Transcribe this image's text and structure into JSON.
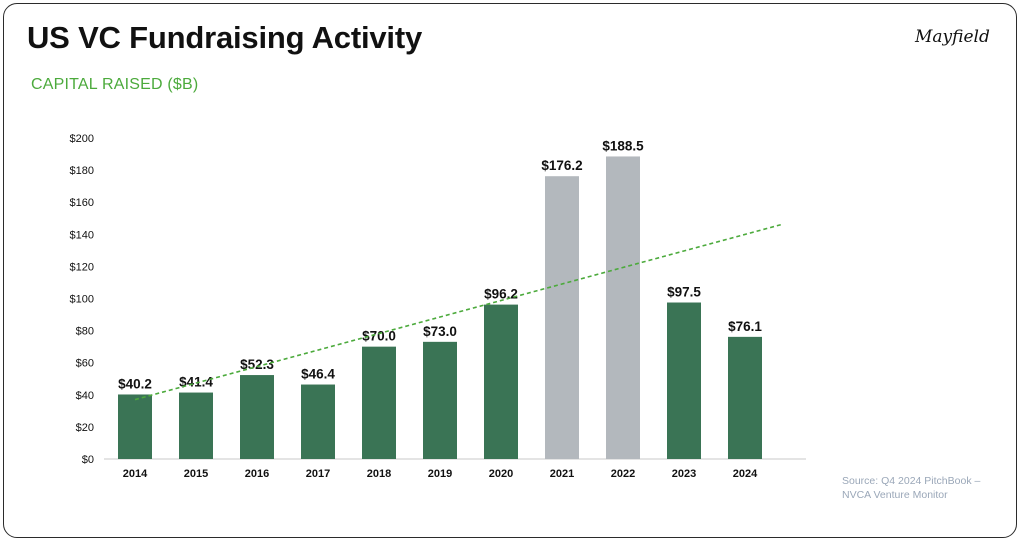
{
  "header": {
    "title": "US VC Fundraising Activity",
    "subtitle": "CAPITAL RAISED ($B)",
    "logo": "Mayfield"
  },
  "footer": {
    "source_line1": "Source: Q4 2024 PitchBook –",
    "source_line2": "NVCA Venture Monitor"
  },
  "colors": {
    "bar_green": "#3a7455",
    "bar_grey": "#b3b8bd",
    "trend": "#4caa3c"
  },
  "chart_data": {
    "type": "bar",
    "title": "US VC Fundraising Activity",
    "ylabel": "CAPITAL RAISED ($B)",
    "categories": [
      "2014",
      "2015",
      "2016",
      "2017",
      "2018",
      "2019",
      "2020",
      "2021",
      "2022",
      "2023",
      "2024"
    ],
    "values": [
      40.2,
      41.4,
      52.3,
      46.4,
      70.0,
      73.0,
      96.2,
      176.2,
      188.5,
      97.5,
      76.1
    ],
    "value_labels": [
      "$40.2",
      "$41.4",
      "$52.3",
      "$46.4",
      "$70.0",
      "$73.0",
      "$96.2",
      "$176.2",
      "$188.5",
      "$97.5",
      "$76.1"
    ],
    "highlight": [
      "green",
      "green",
      "green",
      "green",
      "green",
      "green",
      "green",
      "grey",
      "grey",
      "green",
      "green"
    ],
    "ylim": [
      0,
      200
    ],
    "yticks": [
      0,
      20,
      40,
      60,
      80,
      100,
      120,
      140,
      160,
      180,
      200
    ],
    "ytick_labels": [
      "$0",
      "$20",
      "$40",
      "$60",
      "$80",
      "$100",
      "$120",
      "$140",
      "$160",
      "$180",
      "$200"
    ],
    "trendline": {
      "style": "dashed",
      "start": {
        "x": "2014",
        "y": 37
      },
      "end": {
        "x": "2025",
        "y": 146
      }
    },
    "grid": false,
    "legend": "none"
  }
}
